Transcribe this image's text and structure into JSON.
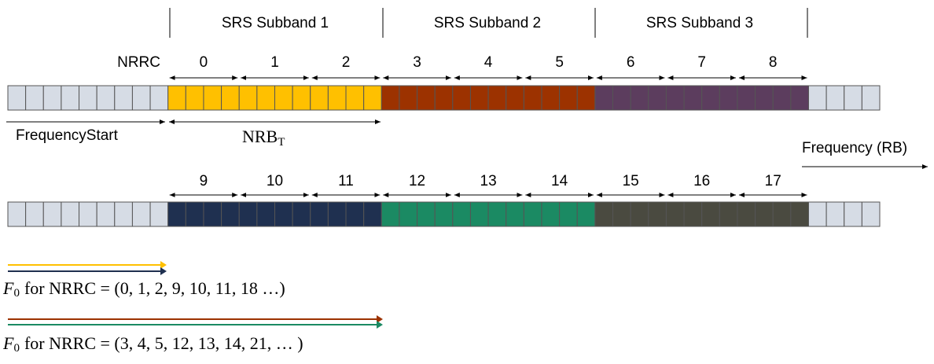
{
  "subbands": [
    "SRS Subband 1",
    "SRS Subband 2",
    "SRS Subband 3"
  ],
  "nrrc_label": "NRRC",
  "rows": [
    {
      "indices": [
        0,
        1,
        2,
        3,
        4,
        5,
        6,
        7,
        8
      ]
    },
    {
      "indices": [
        9,
        10,
        11,
        12,
        13,
        14,
        15,
        16,
        17
      ]
    }
  ],
  "frequency_start": "FrequencyStart",
  "nrb": {
    "base": "NRB",
    "sub": "T"
  },
  "frequency_axis": "Frequency (RB)",
  "formulas": [
    {
      "symbol": "F",
      "sub": "0",
      "text": "for NRRC = (0, 1, 2, 9, 10, 11, 18 …)"
    },
    {
      "symbol": "F",
      "sub": "0",
      "text": "for NRRC = (3, 4, 5, 12, 13, 14, 21, … )"
    }
  ]
}
